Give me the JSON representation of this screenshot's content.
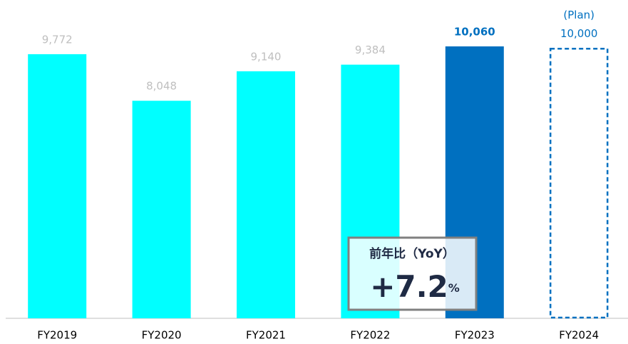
{
  "chart_data": {
    "type": "bar",
    "categories": [
      "FY2019",
      "FY2020",
      "FY2021",
      "FY2022",
      "FY2023",
      "FY2024"
    ],
    "values": [
      9772,
      8048,
      9140,
      9384,
      10060,
      10000
    ],
    "value_labels": [
      "9,772",
      "8,048",
      "9,140",
      "9,384",
      "10,060",
      "10,000"
    ],
    "colors": [
      "#00ffff",
      "#00ffff",
      "#00ffff",
      "#00ffff",
      "#0070c0",
      "#0070c0"
    ],
    "dashed": [
      false,
      false,
      false,
      false,
      false,
      true
    ],
    "label_colors": [
      "#bfbfbf",
      "#bfbfbf",
      "#bfbfbf",
      "#bfbfbf",
      "#0070c0",
      "#0070c0"
    ],
    "label_bold": [
      false,
      false,
      false,
      false,
      true,
      false
    ],
    "annotations": {
      "plan": "(Plan)",
      "yoy_title": "前年比（YoY）",
      "yoy_value": "+7.2",
      "yoy_unit": "%"
    }
  }
}
